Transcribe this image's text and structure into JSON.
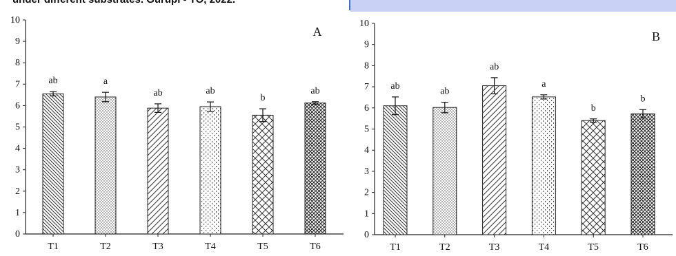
{
  "header": {
    "caption_text": "under different substrates. Gurupi - TO, 2022."
  },
  "chart_data": [
    {
      "type": "bar",
      "panel_label": "A",
      "categories": [
        "T1",
        "T2",
        "T3",
        "T4",
        "T5",
        "T6"
      ],
      "values": [
        6.55,
        6.4,
        5.88,
        5.95,
        5.55,
        6.12
      ],
      "errors": [
        0.1,
        0.22,
        0.2,
        0.22,
        0.3,
        0.06
      ],
      "letters": [
        "ab",
        "a",
        "ab",
        "ab",
        "b",
        "ab"
      ],
      "patterns": [
        "diag-left-dense",
        "dots",
        "diag-right",
        "dots-sparse",
        "crosshatch",
        "crosshatch-dense"
      ],
      "xlabel": "",
      "ylabel": "",
      "ylim": [
        0,
        10
      ],
      "yticks": [
        0,
        1,
        2,
        3,
        4,
        5,
        6,
        7,
        8,
        9,
        10
      ],
      "grid": false
    },
    {
      "type": "bar",
      "panel_label": "B",
      "categories": [
        "T1",
        "T2",
        "T3",
        "T4",
        "T5",
        "T6"
      ],
      "values": [
        6.1,
        6.02,
        7.05,
        6.52,
        5.4,
        5.72
      ],
      "errors": [
        0.42,
        0.25,
        0.38,
        0.1,
        0.08,
        0.2
      ],
      "letters": [
        "ab",
        "ab",
        "ab",
        "a",
        "b",
        "b"
      ],
      "patterns": [
        "diag-left-dense",
        "dots",
        "diag-right",
        "dots-sparse",
        "crosshatch",
        "crosshatch-dense"
      ],
      "xlabel": "",
      "ylabel": "",
      "ylim": [
        0,
        10
      ],
      "yticks": [
        0,
        1,
        2,
        3,
        4,
        5,
        6,
        7,
        8,
        9,
        10
      ],
      "grid": false
    }
  ]
}
